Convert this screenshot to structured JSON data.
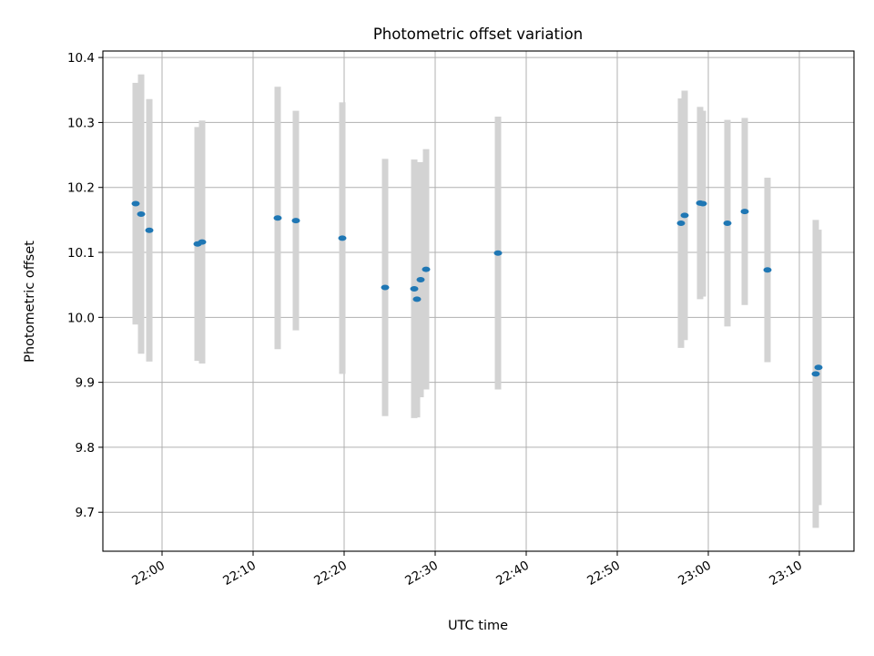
{
  "chart_data": {
    "type": "scatter",
    "title": "Photometric offset variation",
    "xlabel": "UTC time",
    "ylabel": "Photometric offset",
    "x_unit": "minutes past 22:00 UTC",
    "xlim": [
      -6.5,
      76.0
    ],
    "ylim": [
      9.64,
      10.41
    ],
    "grid": true,
    "x_ticks": [
      {
        "value": 0,
        "label": "22:00"
      },
      {
        "value": 10,
        "label": "22:10"
      },
      {
        "value": 20,
        "label": "22:20"
      },
      {
        "value": 30,
        "label": "22:30"
      },
      {
        "value": 40,
        "label": "22:40"
      },
      {
        "value": 50,
        "label": "22:50"
      },
      {
        "value": 60,
        "label": "23:00"
      },
      {
        "value": 70,
        "label": "23:10"
      }
    ],
    "y_ticks": [
      {
        "value": 9.7,
        "label": "9.7"
      },
      {
        "value": 9.8,
        "label": "9.8"
      },
      {
        "value": 9.9,
        "label": "9.9"
      },
      {
        "value": 10.0,
        "label": "10.0"
      },
      {
        "value": 10.1,
        "label": "10.1"
      },
      {
        "value": 10.2,
        "label": "10.2"
      },
      {
        "value": 10.3,
        "label": "10.3"
      },
      {
        "value": 10.4,
        "label": "10.4"
      }
    ],
    "series": [
      {
        "marker_color": "#1f77b4",
        "errorbar_color": "#d3d3d3",
        "points": [
          {
            "x": -2.9,
            "y": 10.175,
            "err": 0.186
          },
          {
            "x": -2.3,
            "y": 10.159,
            "err": 0.215
          },
          {
            "x": -1.4,
            "y": 10.134,
            "err": 0.202
          },
          {
            "x": 3.9,
            "y": 10.113,
            "err": 0.18
          },
          {
            "x": 4.4,
            "y": 10.116,
            "err": 0.187
          },
          {
            "x": 12.7,
            "y": 10.153,
            "err": 0.202
          },
          {
            "x": 14.7,
            "y": 10.149,
            "err": 0.169
          },
          {
            "x": 19.8,
            "y": 10.122,
            "err": 0.209
          },
          {
            "x": 24.5,
            "y": 10.046,
            "err": 0.198
          },
          {
            "x": 27.7,
            "y": 10.044,
            "err": 0.199
          },
          {
            "x": 28.0,
            "y": 10.028,
            "err": 0.182
          },
          {
            "x": 28.4,
            "y": 10.058,
            "err": 0.181
          },
          {
            "x": 29.0,
            "y": 10.074,
            "err": 0.185
          },
          {
            "x": 36.9,
            "y": 10.099,
            "err": 0.21
          },
          {
            "x": 57.0,
            "y": 10.145,
            "err": 0.192
          },
          {
            "x": 57.4,
            "y": 10.157,
            "err": 0.192
          },
          {
            "x": 59.1,
            "y": 10.176,
            "err": 0.148
          },
          {
            "x": 59.4,
            "y": 10.175,
            "err": 0.143
          },
          {
            "x": 62.1,
            "y": 10.145,
            "err": 0.159
          },
          {
            "x": 64.0,
            "y": 10.163,
            "err": 0.144
          },
          {
            "x": 66.5,
            "y": 10.073,
            "err": 0.142
          },
          {
            "x": 71.8,
            "y": 9.913,
            "err": 0.237
          },
          {
            "x": 72.1,
            "y": 9.923,
            "err": 0.212
          }
        ]
      }
    ]
  }
}
